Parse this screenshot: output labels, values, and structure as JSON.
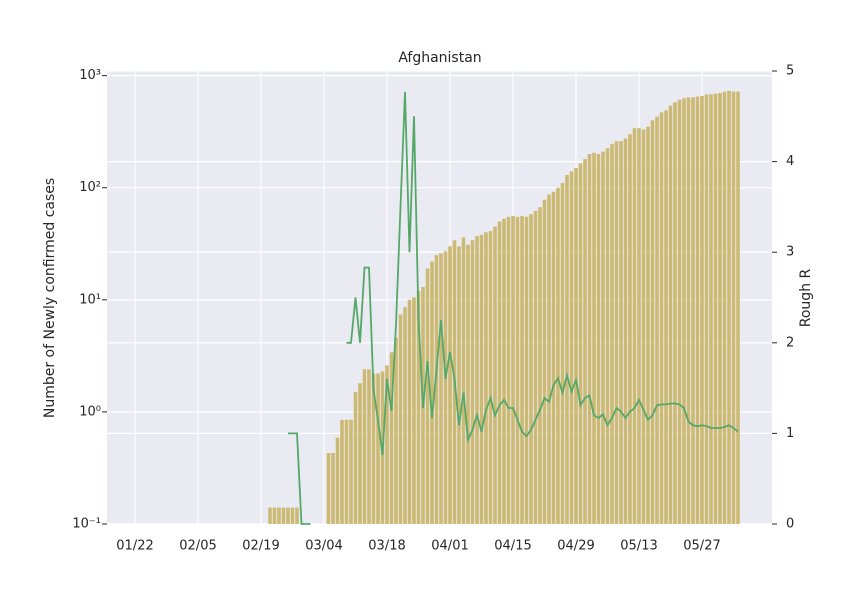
{
  "chart_data": {
    "type": "bar-line",
    "title": "Afghanistan",
    "y_label": "Number of Newly confirmed cases",
    "y2_label": "Rough R",
    "categories": [
      "01/22",
      null,
      null,
      null,
      null,
      null,
      null,
      null,
      null,
      null,
      null,
      null,
      null,
      null,
      "02/05",
      null,
      null,
      null,
      null,
      null,
      null,
      null,
      null,
      null,
      null,
      null,
      null,
      null,
      "02/19",
      null,
      null,
      null,
      null,
      null,
      null,
      null,
      null,
      null,
      null,
      null,
      null,
      null,
      "03/04",
      null,
      null,
      null,
      null,
      null,
      null,
      null,
      null,
      null,
      null,
      null,
      null,
      null,
      "03/18",
      null,
      null,
      null,
      null,
      null,
      null,
      null,
      null,
      null,
      null,
      null,
      null,
      null,
      "04/01",
      null,
      null,
      null,
      null,
      null,
      null,
      null,
      null,
      null,
      null,
      null,
      null,
      null,
      "04/15",
      null,
      null,
      null,
      null,
      null,
      null,
      null,
      null,
      null,
      null,
      null,
      null,
      null,
      "04/29",
      null,
      null,
      null,
      null,
      null,
      null,
      null,
      null,
      null,
      null,
      null,
      null,
      null,
      "05/13",
      null,
      null,
      null,
      null,
      null,
      null,
      null,
      null,
      null,
      null,
      null,
      null,
      null,
      "05/27",
      null,
      null,
      null,
      null,
      null,
      null,
      null,
      null
    ],
    "series": [
      {
        "type": "bar",
        "color": "#ccb974",
        "values": [
          null,
          null,
          null,
          null,
          null,
          null,
          null,
          null,
          null,
          null,
          null,
          null,
          null,
          null,
          null,
          null,
          null,
          null,
          null,
          null,
          null,
          null,
          null,
          null,
          null,
          null,
          null,
          null,
          null,
          null,
          0.14,
          0.14,
          0.14,
          0.14,
          0.14,
          0.14,
          0.14,
          null,
          null,
          null,
          null,
          null,
          null,
          0.43,
          0.43,
          0.59,
          0.85,
          0.85,
          0.85,
          1.5,
          1.8,
          2.4,
          2.4,
          2.2,
          2.2,
          2.3,
          2.6,
          3.4,
          4.6,
          7.4,
          8.6,
          10,
          10.5,
          12,
          13,
          19,
          22,
          25,
          26,
          27,
          30,
          34,
          30,
          36,
          31,
          34,
          37,
          38,
          40,
          41,
          45,
          50,
          53,
          55,
          56,
          55,
          56,
          55,
          58,
          62,
          67,
          78,
          87,
          92,
          100,
          110,
          130,
          140,
          150,
          165,
          180,
          200,
          205,
          200,
          210,
          225,
          245,
          260,
          260,
          275,
          300,
          340,
          340,
          330,
          350,
          400,
          430,
          470,
          490,
          540,
          580,
          610,
          630,
          640,
          640,
          650,
          660,
          680,
          680,
          690,
          700,
          720,
          730,
          720,
          720
        ]
      },
      {
        "type": "line",
        "axis": "y2",
        "color": "#55a868",
        "values": [
          null,
          null,
          null,
          null,
          null,
          null,
          null,
          null,
          null,
          null,
          null,
          null,
          null,
          null,
          null,
          null,
          null,
          null,
          null,
          null,
          null,
          null,
          null,
          null,
          null,
          null,
          null,
          null,
          null,
          null,
          null,
          null,
          null,
          null,
          1,
          1,
          1,
          0,
          0,
          0,
          null,
          null,
          null,
          null,
          null,
          null,
          null,
          2.0,
          2.0,
          2.5,
          2.0,
          2.83,
          2.83,
          1.48,
          1.15,
          0.76,
          1.6,
          1.25,
          2.2,
          3.5,
          4.77,
          3.0,
          4.5,
          2.25,
          1.28,
          1.8,
          1.17,
          1.7,
          2.25,
          1.6,
          1.9,
          1.6,
          1.09,
          1.45,
          0.93,
          1.04,
          1.2,
          1.02,
          1.26,
          1.39,
          1.2,
          1.31,
          1.37,
          1.28,
          1.28,
          1.15,
          1.02,
          0.97,
          1.04,
          1.15,
          1.26,
          1.39,
          1.35,
          1.53,
          1.61,
          1.45,
          1.64,
          1.46,
          1.59,
          1.31,
          1.39,
          1.42,
          1.2,
          1.17,
          1.21,
          1.09,
          1.17,
          1.28,
          1.24,
          1.17,
          1.24,
          1.28,
          1.37,
          1.26,
          1.15,
          1.2,
          1.31,
          1.32,
          1.32,
          1.33,
          1.33,
          1.32,
          1.28,
          1.13,
          1.09,
          1.08,
          1.09,
          1.08,
          1.06,
          1.06,
          1.06,
          1.07,
          1.09,
          1.06,
          1.02
        ]
      }
    ],
    "ylog": true,
    "ylim": [
      0.1,
      1100
    ],
    "yticks": [
      {
        "value": 0.1,
        "label": "10⁻¹"
      },
      {
        "value": 1,
        "label": "10⁰"
      },
      {
        "value": 10,
        "label": "10¹"
      },
      {
        "value": 100,
        "label": "10²"
      },
      {
        "value": 1000,
        "label": "10³"
      }
    ],
    "y2lim": [
      0,
      5
    ],
    "y2ticks": [
      0,
      1,
      2,
      3,
      4,
      5
    ],
    "grid": true,
    "background": "#eaeaf2"
  }
}
